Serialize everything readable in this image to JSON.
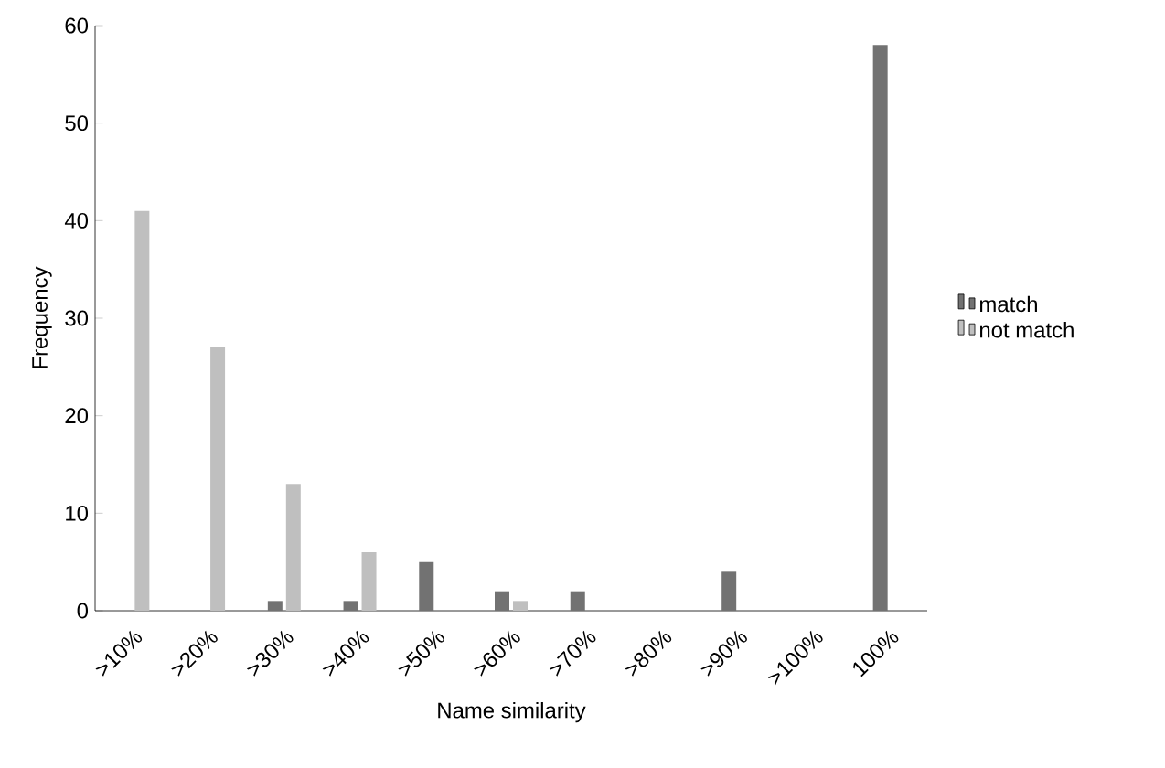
{
  "chart_data": {
    "type": "bar",
    "xlabel": "Name similarity",
    "ylabel": "Frequency",
    "categories": [
      ">10%",
      ">20%",
      ">30%",
      ">40%",
      ">50%",
      ">60%",
      ">70%",
      ">80%",
      ">90%",
      ">100%",
      "100%"
    ],
    "series": [
      {
        "name": "match",
        "color": "#727272",
        "values": [
          0,
          0,
          1,
          1,
          5,
          2,
          2,
          0,
          4,
          0,
          58
        ]
      },
      {
        "name": "not match",
        "color": "#bfbfbf",
        "values": [
          41,
          27,
          13,
          6,
          0,
          1,
          0,
          0,
          0,
          0,
          0
        ]
      }
    ],
    "ylim": [
      0,
      60
    ],
    "yticks": [
      0,
      10,
      20,
      30,
      40,
      50,
      60
    ],
    "grid": false,
    "legend": "right"
  }
}
